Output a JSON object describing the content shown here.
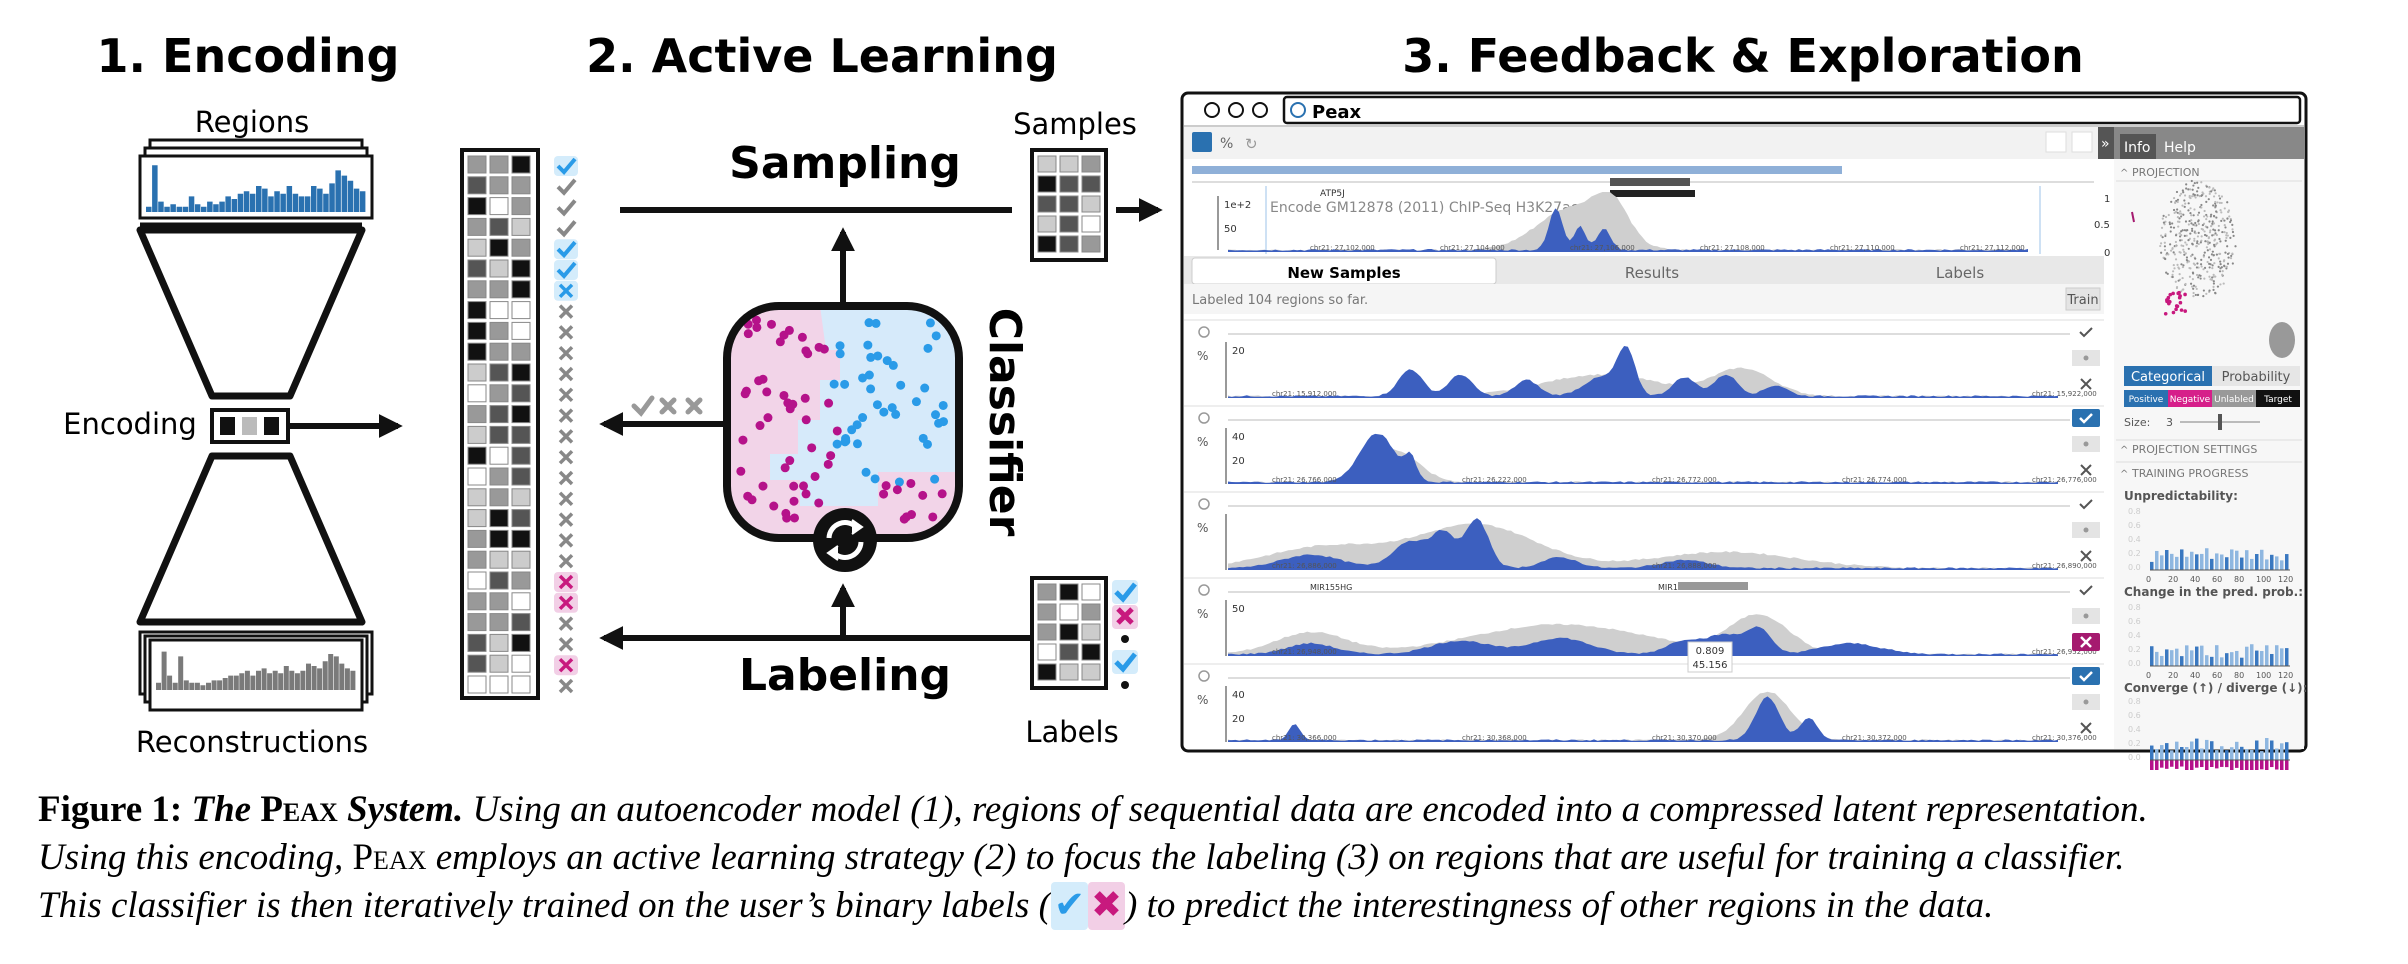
{
  "figure": {
    "section1_title": "1. Encoding",
    "section2_title": "2. Active Learning",
    "section3_title": "3. Feedback & Exploration",
    "regions_label": "Regions",
    "encoding_label": "Encoding",
    "reconstructions_label": "Reconstructions",
    "sampling_label": "Sampling",
    "labeling_label": "Labeling",
    "samples_label": "Samples",
    "labels_label": "Labels",
    "classifier_label": "Classifier"
  },
  "app": {
    "window_title": "Peax",
    "track_title": "Encode GM12878 (2011) ChIP-Seq H3K27ac p-val",
    "gene_atp5j": "ATP5J",
    "y_top": "1e+2",
    "y_mid": "50",
    "x_ticks": [
      "chr21: 27,102,000",
      "chr21: 27,104,000",
      "chr21: 27,106,000",
      "chr21: 27,108,000",
      "chr21: 27,110,000",
      "chr21: 27,112,000"
    ],
    "tabs": [
      "New Samples",
      "Results",
      "Labels"
    ],
    "labeled_status": "Labeled 104 regions so far.",
    "train_button": "Train",
    "rows": [
      {
        "ymax": "20",
        "ticks": [
          "chr21: 15,912,000",
          "chr21: 15,922,000"
        ]
      },
      {
        "ymax": "40",
        "ymid": "20",
        "ticks": [
          "chr21: 26,766,000",
          "chr21: 26,222,000",
          "chr21: 26,772,000",
          "chr21: 26,774,000",
          "chr21: 26,776,000"
        ]
      },
      {
        "ymax": "",
        "ticks": [
          "chr21: 26,886,000",
          "chr21: 26,888,000",
          "chr21: 26,890,000"
        ]
      },
      {
        "ymax": "50",
        "genes": [
          "MIR155HG",
          "MIR155"
        ],
        "tooltip_a": "0.809",
        "tooltip_b": "45.156",
        "ticks": [
          "chr21: 26,948,000",
          "chr21: 26,952,000"
        ]
      },
      {
        "ymax": "40",
        "ymid": "20",
        "ticks": [
          "chr21: 30,366,000",
          "chr21: 30,368,000",
          "chr21: 30,370,000",
          "chr21: 30,372,000",
          "chr21: 30,376,000"
        ]
      }
    ],
    "side_tabs": [
      "Info",
      "Help"
    ],
    "projection_header": "PROJECTION",
    "proj_ticks": [
      "1",
      "0.5",
      "0"
    ],
    "color_buttons": [
      "Categorical",
      "Probability"
    ],
    "legend_chips": [
      "Positive",
      "Negative",
      "Unlabled",
      "Target"
    ],
    "size_label": "Size:",
    "size_value": "3",
    "projection_settings_header": "PROJECTION SETTINGS",
    "training_progress_header": "TRAINING PROGRESS",
    "metric_unpredictability": "Unpredictability:",
    "metric_change": "Change in the pred. prob.:",
    "metric_converge": "Converge (↑) / diverge (↓):",
    "progress_x_ticks": [
      "0",
      "20",
      "40",
      "60",
      "80",
      "100",
      "120"
    ],
    "progress_y_ticks": [
      "0.8",
      "0.6",
      "0.4",
      "0.2",
      "0.0"
    ],
    "colors": {
      "accent_blue": "#2a71b0",
      "signal_blue": "#3c5fbf",
      "pink": "#c8197e",
      "check_blue": "#2a9be8"
    }
  },
  "caption": {
    "fig_label": "Figure 1:",
    "system_title_a": "The ",
    "system_title_b": "Peax",
    "system_title_c": " System.",
    "text_1": " Using an autoencoder model (1), regions of sequential data are encoded into a compressed latent representation.",
    "text_2a": "Using this encoding, ",
    "text_2b": "Peax",
    "text_2c": " employs an active learning strategy (2) to focus the labeling (3) on regions that are useful for training a classifier.",
    "text_3a": "This classifier is then iteratively trained on the user’s binary labels (",
    "text_3b": ") to predict the interestingness of other regions in the data."
  }
}
